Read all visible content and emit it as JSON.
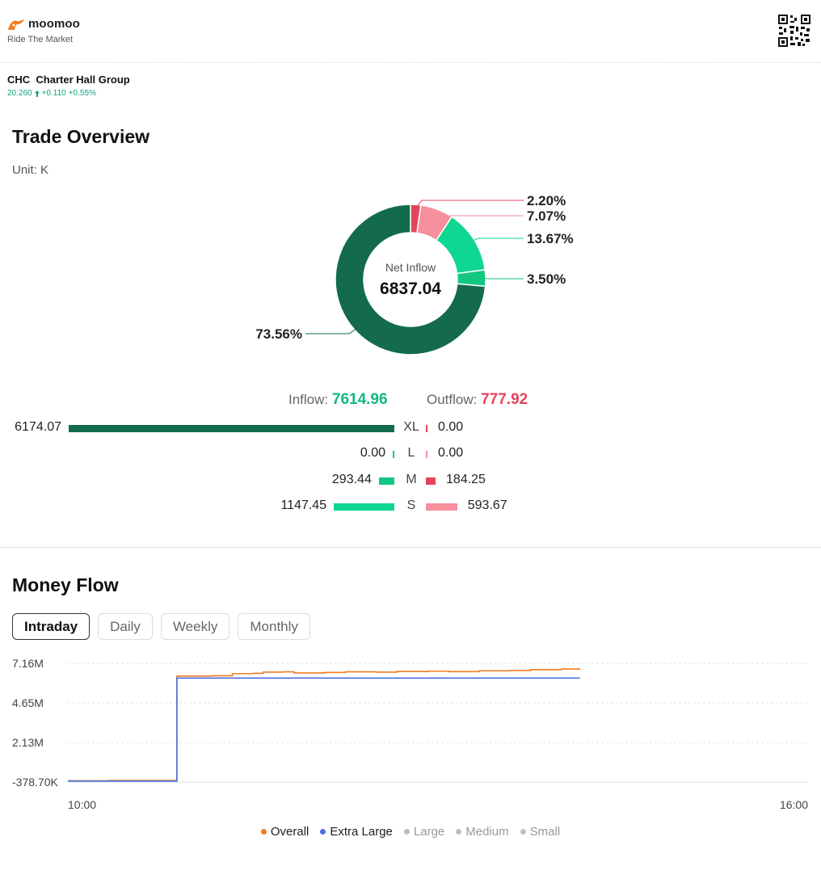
{
  "brand": {
    "name": "moomoo",
    "tagline": "Ride The Market",
    "logo_icon": "moomoo-logo-icon",
    "qr_icon": "qr-code-icon"
  },
  "stock": {
    "symbol": "CHC",
    "name": "Charter Hall Group",
    "price": "20.260",
    "change": "+0.110",
    "change_pct": "+0.55%",
    "up_color": "#10a37f"
  },
  "trade_overview": {
    "title": "Trade Overview",
    "unit": "Unit: K",
    "center_label": "Net Inflow",
    "center_value": "6837.04",
    "segments": [
      {
        "name": "XL outflow",
        "pct": 0.0,
        "color": "#e5455c",
        "label": ""
      },
      {
        "name": "L outflow",
        "pct": 0.0,
        "color": "#e5455c",
        "label": ""
      },
      {
        "name": "M outflow",
        "pct": 2.2,
        "color": "#e5455c",
        "label": "2.20%"
      },
      {
        "name": "S outflow",
        "pct": 7.07,
        "color": "#f5909c",
        "label": "7.07%"
      },
      {
        "name": "S inflow",
        "pct": 13.67,
        "color": "#0fd691",
        "label": "13.67%"
      },
      {
        "name": "M inflow",
        "pct": 3.5,
        "color": "#12c782",
        "label": "3.50%"
      },
      {
        "name": "L inflow",
        "pct": 0.0,
        "color": "#1d9e70",
        "label": ""
      },
      {
        "name": "XL inflow",
        "pct": 73.56,
        "color": "#136b4b",
        "label": "73.56%"
      }
    ],
    "inflow_label": "Inflow:",
    "inflow_total": "7614.96",
    "outflow_label": "Outflow:",
    "outflow_total": "777.92",
    "rows": [
      {
        "cat": "XL",
        "in": 6174.07,
        "in_text": "6174.07",
        "out": 0.0,
        "out_text": "0.00",
        "in_color": "#136b4b",
        "out_color": "#e5455c"
      },
      {
        "cat": "L",
        "in": 0.0,
        "in_text": "0.00",
        "out": 0.0,
        "out_text": "0.00",
        "in_color": "#12c782",
        "out_color": "#f5909c"
      },
      {
        "cat": "M",
        "in": 293.44,
        "in_text": "293.44",
        "out": 184.25,
        "out_text": "184.25",
        "in_color": "#12c782",
        "out_color": "#e5455c"
      },
      {
        "cat": "S",
        "in": 1147.45,
        "in_text": "1147.45",
        "out": 593.67,
        "out_text": "593.67",
        "in_color": "#0fd691",
        "out_color": "#f5909c"
      }
    ]
  },
  "money_flow": {
    "title": "Money Flow",
    "tabs": [
      {
        "label": "Intraday",
        "active": true
      },
      {
        "label": "Daily",
        "active": false
      },
      {
        "label": "Weekly",
        "active": false
      },
      {
        "label": "Monthly",
        "active": false
      }
    ]
  },
  "chart_data": {
    "type": "line",
    "title": "",
    "xlabel": "",
    "ylabel": "",
    "x_ticks": [
      "10:00",
      "16:00"
    ],
    "y_ticks": [
      "7.16M",
      "4.65M",
      "2.13M",
      "-378.70K"
    ],
    "y_tick_values": [
      7.16,
      4.65,
      2.13,
      -0.3787
    ],
    "ylim": [
      -0.3787,
      7.16
    ],
    "x_range_minutes": [
      0,
      360
    ],
    "grid": true,
    "legend_position": "bottom",
    "series": [
      {
        "name": "Overall",
        "color": "#f07c22",
        "points": [
          [
            0,
            -0.3
          ],
          [
            20,
            -0.28
          ],
          [
            50,
            -0.28
          ],
          [
            53,
            6.35
          ],
          [
            70,
            6.37
          ],
          [
            80,
            6.5
          ],
          [
            90,
            6.52
          ],
          [
            95,
            6.6
          ],
          [
            105,
            6.62
          ],
          [
            110,
            6.55
          ],
          [
            125,
            6.58
          ],
          [
            135,
            6.62
          ],
          [
            150,
            6.6
          ],
          [
            160,
            6.64
          ],
          [
            175,
            6.66
          ],
          [
            185,
            6.63
          ],
          [
            200,
            6.68
          ],
          [
            215,
            6.7
          ],
          [
            225,
            6.76
          ],
          [
            240,
            6.8
          ],
          [
            249,
            6.82
          ]
        ]
      },
      {
        "name": "Extra Large",
        "color": "#4a6fe0",
        "points": [
          [
            0,
            -0.32
          ],
          [
            50,
            -0.32
          ],
          [
            53,
            6.22
          ],
          [
            249,
            6.22
          ]
        ]
      }
    ],
    "legend": [
      {
        "name": "Overall",
        "color": "#f07c22"
      },
      {
        "name": "Extra Large",
        "color": "#4a6fe0"
      },
      {
        "name": "Large",
        "color": "#bdbdbd"
      },
      {
        "name": "Medium",
        "color": "#bdbdbd"
      },
      {
        "name": "Small",
        "color": "#bdbdbd"
      }
    ]
  }
}
